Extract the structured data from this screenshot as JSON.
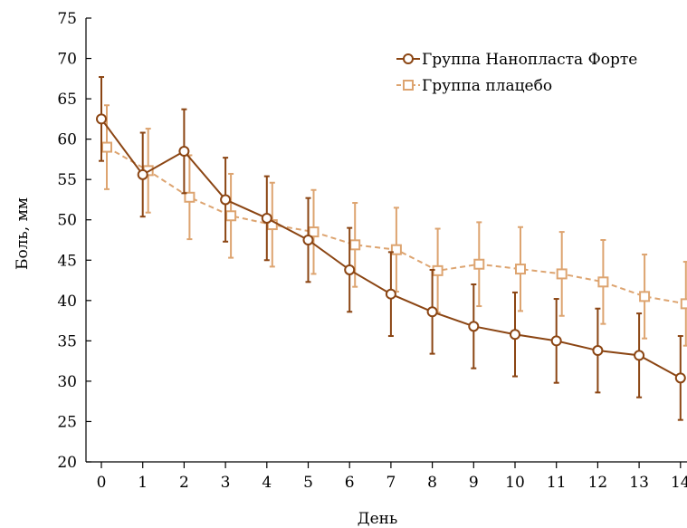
{
  "chart_data": {
    "type": "line",
    "xlabel": "День",
    "ylabel": "Боль, мм",
    "x": [
      0,
      1,
      2,
      3,
      4,
      5,
      6,
      7,
      8,
      9,
      10,
      11,
      12,
      13,
      14
    ],
    "xlim": [
      0,
      14
    ],
    "ylim": [
      20,
      75
    ],
    "yticks": [
      20,
      25,
      30,
      35,
      40,
      45,
      50,
      55,
      60,
      65,
      70,
      75
    ],
    "grid": false,
    "legend": "top-right",
    "series": [
      {
        "name": "Группа Нанопласта Форте",
        "style": "solid",
        "marker": "circle",
        "color": "#8B4513",
        "values": [
          62.5,
          55.6,
          58.5,
          52.5,
          50.2,
          47.5,
          43.8,
          40.8,
          38.6,
          36.8,
          35.8,
          35.0,
          33.8,
          33.2,
          30.4
        ],
        "error": [
          5.2,
          5.2,
          5.2,
          5.2,
          5.2,
          5.2,
          5.2,
          5.2,
          5.2,
          5.2,
          5.2,
          5.2,
          5.2,
          5.2,
          5.2
        ]
      },
      {
        "name": "Группа плацебо",
        "style": "dashed",
        "marker": "square",
        "color": "#DDA470",
        "values": [
          59.0,
          56.1,
          52.8,
          50.5,
          49.4,
          48.5,
          46.9,
          46.3,
          43.7,
          44.5,
          43.9,
          43.3,
          42.3,
          40.5,
          39.6
        ],
        "error": [
          5.2,
          5.2,
          5.2,
          5.2,
          5.2,
          5.2,
          5.2,
          5.2,
          5.2,
          5.2,
          5.2,
          5.2,
          5.2,
          5.2,
          5.2
        ]
      }
    ]
  }
}
